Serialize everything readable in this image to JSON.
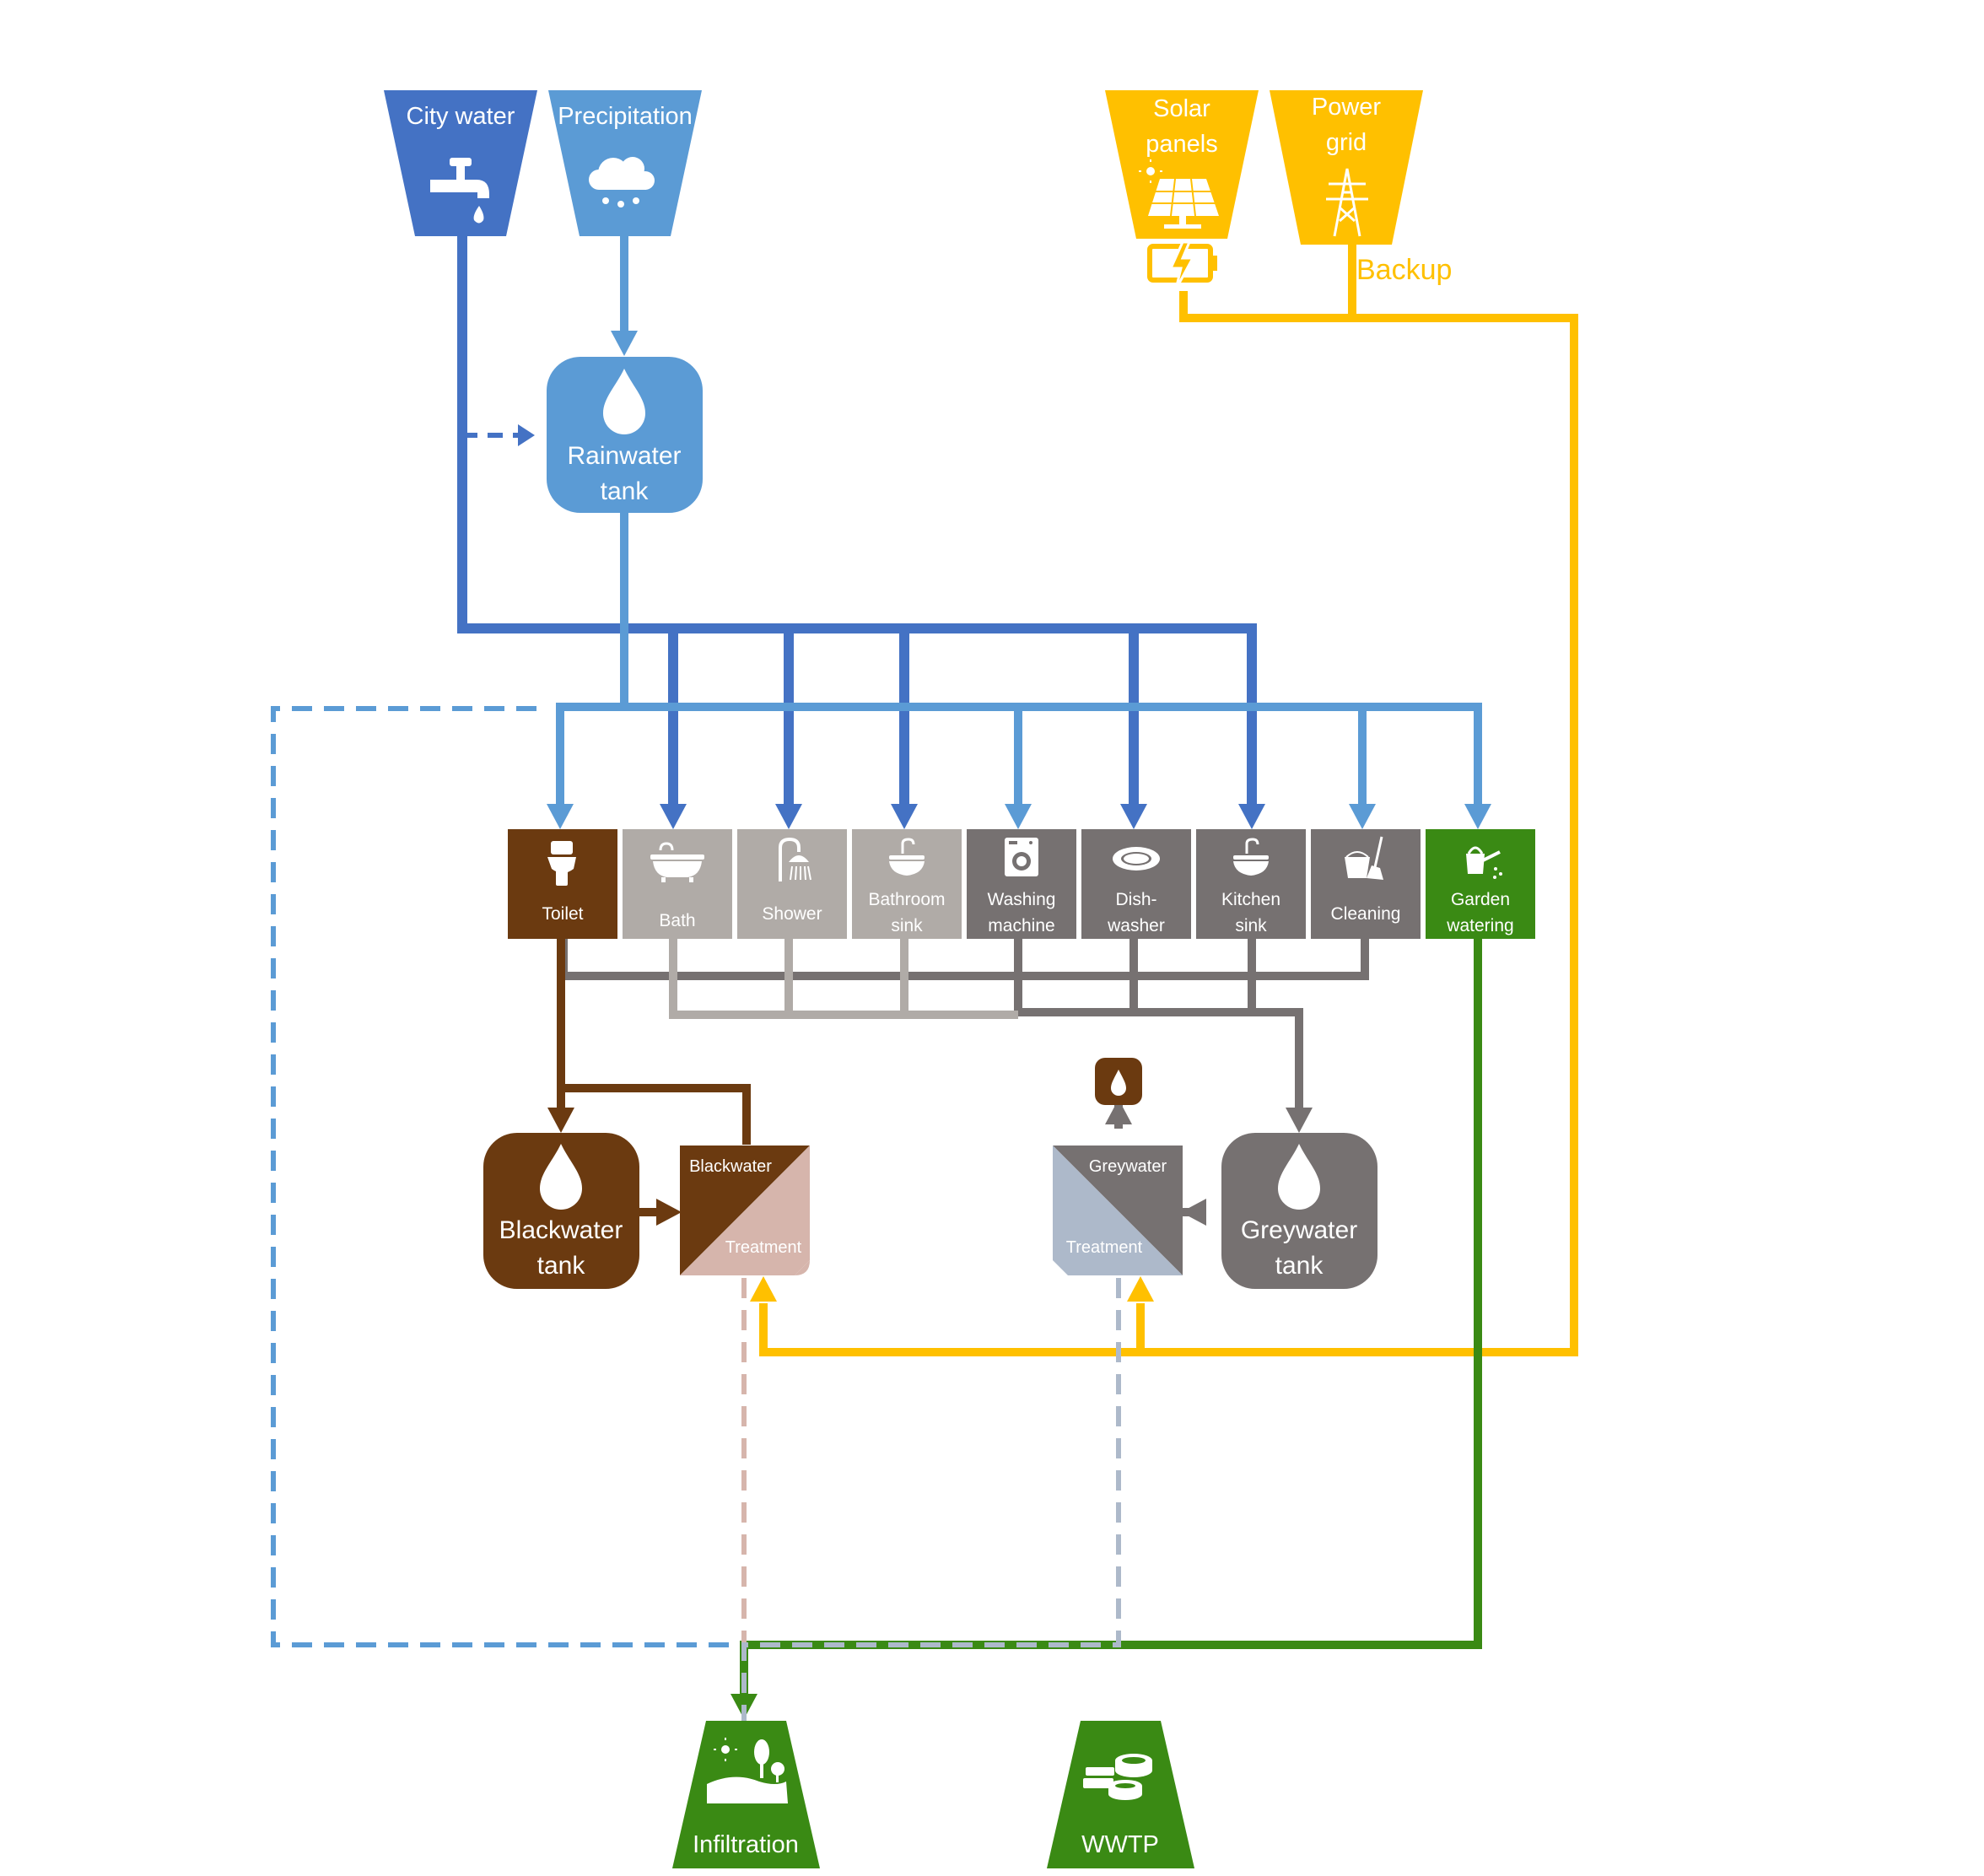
{
  "sources": {
    "city_water": {
      "label": "City water",
      "color": "#4472c4",
      "icon": "faucet-icon"
    },
    "precipitation": {
      "label": "Precipitation",
      "color": "#5b9bd5",
      "icon": "rain-cloud-icon"
    },
    "solar_panels": {
      "line1": "Solar",
      "line2": "panels",
      "color": "#ffc000",
      "icon": "solar-panel-icon"
    },
    "power_grid": {
      "line1": "Power",
      "line2": "grid",
      "color": "#ffc000",
      "icon": "power-pylon-icon"
    }
  },
  "backup_label": "Backup",
  "rainwater_tank": {
    "line1": "Rainwater",
    "line2": "tank",
    "color": "#5b9bd5"
  },
  "fixtures": [
    {
      "id": "toilet",
      "line1": "Toilet",
      "line2": "",
      "color": "#6b3a10",
      "icon": "toilet-icon"
    },
    {
      "id": "bath",
      "line1": "Bath",
      "line2": "",
      "color": "#b0aba7",
      "icon": "bathtub-icon"
    },
    {
      "id": "shower",
      "line1": "Shower",
      "line2": "",
      "color": "#b0aba7",
      "icon": "shower-icon"
    },
    {
      "id": "bathroom-sink",
      "line1": "Bathroom",
      "line2": "sink",
      "color": "#b0aba7",
      "icon": "sink-icon"
    },
    {
      "id": "washing-machine",
      "line1": "Washing",
      "line2": "machine",
      "color": "#767171",
      "icon": "washing-machine-icon"
    },
    {
      "id": "dishwasher",
      "line1": "Dish-",
      "line2": "washer",
      "color": "#767171",
      "icon": "dish-icon"
    },
    {
      "id": "kitchen-sink",
      "line1": "Kitchen",
      "line2": "sink",
      "color": "#767171",
      "icon": "sink-icon"
    },
    {
      "id": "cleaning",
      "line1": "Cleaning",
      "line2": "",
      "color": "#767171",
      "icon": "bucket-broom-icon"
    },
    {
      "id": "garden-watering",
      "line1": "Garden",
      "line2": "watering",
      "color": "#3a8a14",
      "icon": "watering-can-icon"
    }
  ],
  "blackwater_tank": {
    "line1": "Blackwater",
    "line2": "tank",
    "color": "#6b3a10"
  },
  "blackwater_treatment": {
    "top": "Blackwater",
    "bottom": "Treatment",
    "color_top": "#6b3a10",
    "color_bottom": "#d6b5ac"
  },
  "greywater_tank": {
    "line1": "Greywater",
    "line2": "tank",
    "color": "#767171"
  },
  "greywater_treatment": {
    "top": "Greywater",
    "bottom": "Treatment",
    "color_top": "#767171",
    "color_bottom": "#adb9ca"
  },
  "sinks": {
    "infiltration": {
      "label": "Infiltration",
      "color": "#3a8a14",
      "icon": "landscape-icon"
    },
    "wwtp": {
      "label": "WWTP",
      "color": "#3a8a14",
      "icon": "treatment-basins-icon"
    }
  },
  "colors": {
    "city_water": "#4472c4",
    "rainwater": "#5b9bd5",
    "energy": "#ffc000",
    "blackwater": "#6b3a10",
    "greywater_light": "#b0aba7",
    "greywater_dark": "#767171",
    "garden": "#3a8a14",
    "bw_treated": "#d6b5ac",
    "gw_treated": "#adb9ca"
  }
}
